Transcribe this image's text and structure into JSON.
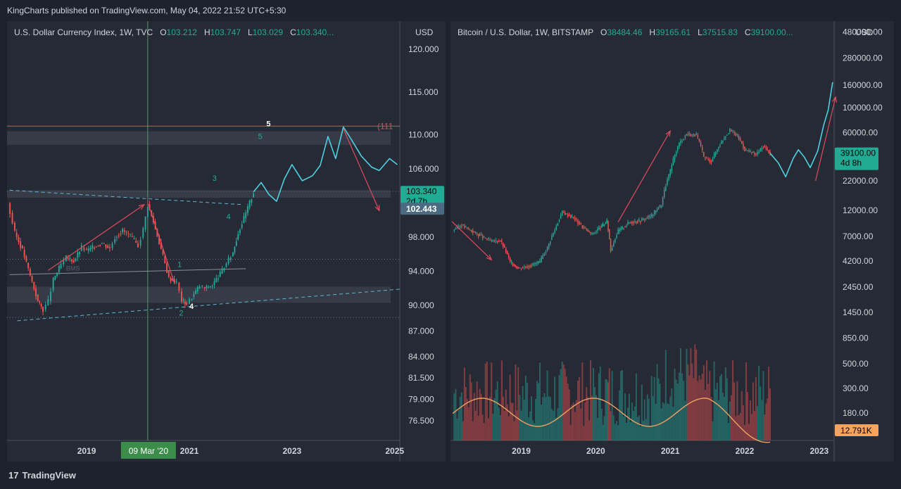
{
  "header": {
    "publish_line": "KingCharts published on TradingView.com, May 04, 2022 21:52 UTC+5:30"
  },
  "footer": {
    "brand": "TradingView",
    "logo_glyph": "17"
  },
  "colors": {
    "background": "#1e222d",
    "panel": "#262a35",
    "up": "#26a69a",
    "down": "#ef5350",
    "projection": "#4dd0e1",
    "annotation": "#e04a5f",
    "label_green": "#22ab94"
  },
  "chart_data": [
    {
      "type": "candlestick",
      "title": "U.S. Dollar Currency Index, 1W, TVC",
      "ohlc": {
        "O": "103.212",
        "H": "103.747",
        "L": "103.029",
        "C": "103.340..."
      },
      "currency": "USD",
      "y_ticks": [
        "120.000",
        "115.000",
        "110.000",
        "106.000",
        "103.340",
        "102.443",
        "98.000",
        "94.000",
        "90.000",
        "87.000",
        "84.000",
        "81.500",
        "79.000",
        "76.500"
      ],
      "ylim": [
        75,
        121
      ],
      "x_ticks": [
        "2019",
        "2021",
        "2023",
        "2025"
      ],
      "xlim": [
        2017.45,
        2025.1
      ],
      "cursor_date_label": "09 Mar '20",
      "cursor_x": 2020.19,
      "price_label": {
        "value": "103.340",
        "countdown": "2d 7h"
      },
      "crosshair_label": "102.443",
      "horizontal_level": {
        "value": 111,
        "label": "(111"
      },
      "zones": [
        {
          "from": 108.8,
          "to": 110.4
        },
        {
          "from": 102.6,
          "to": 103.5
        },
        {
          "from": 90.3,
          "to": 92.2
        }
      ],
      "dotted_levels": [
        103.35,
        95.4,
        88.6
      ],
      "wave_labels": [
        {
          "text": "1",
          "x": 2020.77,
          "y": 94.5
        },
        {
          "text": "2",
          "x": 2020.8,
          "y": 88.8
        },
        {
          "text": "3",
          "x": 2021.45,
          "y": 104.6
        },
        {
          "text": "4",
          "x": 2021.72,
          "y": 100.1
        },
        {
          "text": "5",
          "x": 2022.5,
          "y": 111.0
        },
        {
          "text": "5",
          "x": 2022.34,
          "y": 109.5
        },
        {
          "text": "4",
          "x": 2021.0,
          "y": 89.6
        }
      ],
      "bms_label": "BMS",
      "price_path": [
        [
          2017.46,
          102.0
        ],
        [
          2017.6,
          98.5
        ],
        [
          2017.75,
          96.5
        ],
        [
          2017.9,
          93.5
        ],
        [
          2018.05,
          90.5
        ],
        [
          2018.15,
          89.5
        ],
        [
          2018.25,
          90.5
        ],
        [
          2018.35,
          93.0
        ],
        [
          2018.5,
          94.8
        ],
        [
          2018.6,
          95.6
        ],
        [
          2018.75,
          95.2
        ],
        [
          2018.9,
          96.8
        ],
        [
          2019.0,
          96.4
        ],
        [
          2019.15,
          96.9
        ],
        [
          2019.3,
          97.3
        ],
        [
          2019.45,
          96.7
        ],
        [
          2019.55,
          98.0
        ],
        [
          2019.7,
          98.8
        ],
        [
          2019.85,
          98.1
        ],
        [
          2020.0,
          97.0
        ],
        [
          2020.1,
          98.9
        ],
        [
          2020.19,
          101.8
        ],
        [
          2020.3,
          99.8
        ],
        [
          2020.45,
          96.6
        ],
        [
          2020.6,
          93.2
        ],
        [
          2020.75,
          92.7
        ],
        [
          2020.85,
          90.6
        ],
        [
          2020.95,
          90.2
        ],
        [
          2021.05,
          91.0
        ],
        [
          2021.2,
          92.3
        ],
        [
          2021.3,
          92.0
        ],
        [
          2021.45,
          92.4
        ],
        [
          2021.6,
          93.7
        ],
        [
          2021.72,
          94.9
        ],
        [
          2021.85,
          96.2
        ],
        [
          2021.95,
          98.5
        ],
        [
          2022.1,
          100.8
        ],
        [
          2022.25,
          103.3
        ]
      ],
      "projection_path": [
        [
          2022.25,
          103.3
        ],
        [
          2022.4,
          104.4
        ],
        [
          2022.55,
          103.0
        ],
        [
          2022.7,
          102.2
        ],
        [
          2022.85,
          104.8
        ],
        [
          2023.0,
          106.5
        ],
        [
          2023.2,
          104.6
        ],
        [
          2023.4,
          105.2
        ],
        [
          2023.55,
          106.4
        ],
        [
          2023.7,
          109.8
        ],
        [
          2023.85,
          107.2
        ],
        [
          2024.0,
          110.9
        ],
        [
          2024.15,
          109.5
        ],
        [
          2024.35,
          107.5
        ],
        [
          2024.55,
          106.2
        ],
        [
          2024.7,
          105.8
        ],
        [
          2024.9,
          107.2
        ],
        [
          2025.05,
          106.5
        ]
      ],
      "arrows": [
        {
          "from": [
            2018.25,
            94.1
          ],
          "to": [
            2020.12,
            101.8
          ]
        },
        {
          "from": [
            2020.2,
            101.9
          ],
          "to": [
            2020.7,
            92.8
          ]
        },
        {
          "from": [
            2024.0,
            110.7
          ],
          "to": [
            2024.7,
            101.1
          ]
        }
      ],
      "trendlines": [
        {
          "from": [
            2017.5,
            103.5
          ],
          "to": [
            2022.05,
            101.8
          ],
          "style": "dashed"
        },
        {
          "from": [
            2017.65,
            88.2
          ],
          "to": [
            2025.1,
            91.9
          ],
          "style": "dashed"
        },
        {
          "from": [
            2017.5,
            93.6
          ],
          "to": [
            2022.1,
            94.3
          ],
          "style": "solid"
        }
      ]
    },
    {
      "type": "candlestick",
      "title": "Bitcoin / U.S. Dollar, 1W, BITSTAMP",
      "ohlc": {
        "O": "38484.46",
        "H": "39165.61",
        "L": "37515.83",
        "C": "39100.00..."
      },
      "currency": "USD",
      "y_scale": "log",
      "y_ticks": [
        "480000.00",
        "280000.00",
        "160000.00",
        "100000.00",
        "60000.00",
        "39100.00",
        "22000.00",
        "12000.00",
        "7000.00",
        "4200.00",
        "2450.00",
        "1450.00",
        "850.00",
        "500.00",
        "300.00",
        "180.00",
        "12.791K"
      ],
      "ylim": [
        120,
        520000
      ],
      "x_ticks": [
        "2019",
        "2020",
        "2021",
        "2022",
        "2023"
      ],
      "xlim": [
        2018.05,
        2023.2
      ],
      "price_label": {
        "value": "39100.00",
        "countdown": "4d 8h"
      },
      "volume_label": "12.791K",
      "price_path": [
        [
          2018.08,
          8000
        ],
        [
          2018.2,
          8800
        ],
        [
          2018.35,
          7700
        ],
        [
          2018.5,
          6800
        ],
        [
          2018.6,
          6300
        ],
        [
          2018.72,
          6400
        ],
        [
          2018.85,
          4100
        ],
        [
          2018.96,
          3600
        ],
        [
          2019.1,
          3800
        ],
        [
          2019.25,
          4100
        ],
        [
          2019.35,
          5500
        ],
        [
          2019.45,
          8000
        ],
        [
          2019.55,
          11500
        ],
        [
          2019.7,
          10300
        ],
        [
          2019.82,
          8500
        ],
        [
          2019.95,
          7300
        ],
        [
          2020.08,
          8600
        ],
        [
          2020.15,
          9500
        ],
        [
          2020.2,
          5200
        ],
        [
          2020.3,
          7800
        ],
        [
          2020.45,
          9300
        ],
        [
          2020.6,
          9700
        ],
        [
          2020.75,
          10700
        ],
        [
          2020.88,
          13500
        ],
        [
          2021.0,
          27000
        ],
        [
          2021.12,
          48000
        ],
        [
          2021.22,
          58000
        ],
        [
          2021.35,
          57000
        ],
        [
          2021.45,
          36000
        ],
        [
          2021.55,
          33000
        ],
        [
          2021.65,
          45000
        ],
        [
          2021.8,
          63000
        ],
        [
          2021.9,
          56000
        ],
        [
          2022.0,
          42000
        ],
        [
          2022.15,
          38000
        ],
        [
          2022.25,
          45000
        ],
        [
          2022.34,
          39100
        ]
      ],
      "projection_path": [
        [
          2022.34,
          39100
        ],
        [
          2022.45,
          32000
        ],
        [
          2022.55,
          24000
        ],
        [
          2022.65,
          35000
        ],
        [
          2022.72,
          42000
        ],
        [
          2022.8,
          36000
        ],
        [
          2022.88,
          29000
        ],
        [
          2022.98,
          41000
        ],
        [
          2023.06,
          70000
        ],
        [
          2023.12,
          95000
        ],
        [
          2023.18,
          170000
        ]
      ],
      "arrows": [
        {
          "from": [
            2018.07,
            9500
          ],
          "to": [
            2018.6,
            4300
          ]
        },
        {
          "from": [
            2020.3,
            9400
          ],
          "to": [
            2021.0,
            62000
          ]
        },
        {
          "from": [
            2022.95,
            22000
          ],
          "to": [
            2023.22,
            125000
          ]
        }
      ]
    }
  ]
}
